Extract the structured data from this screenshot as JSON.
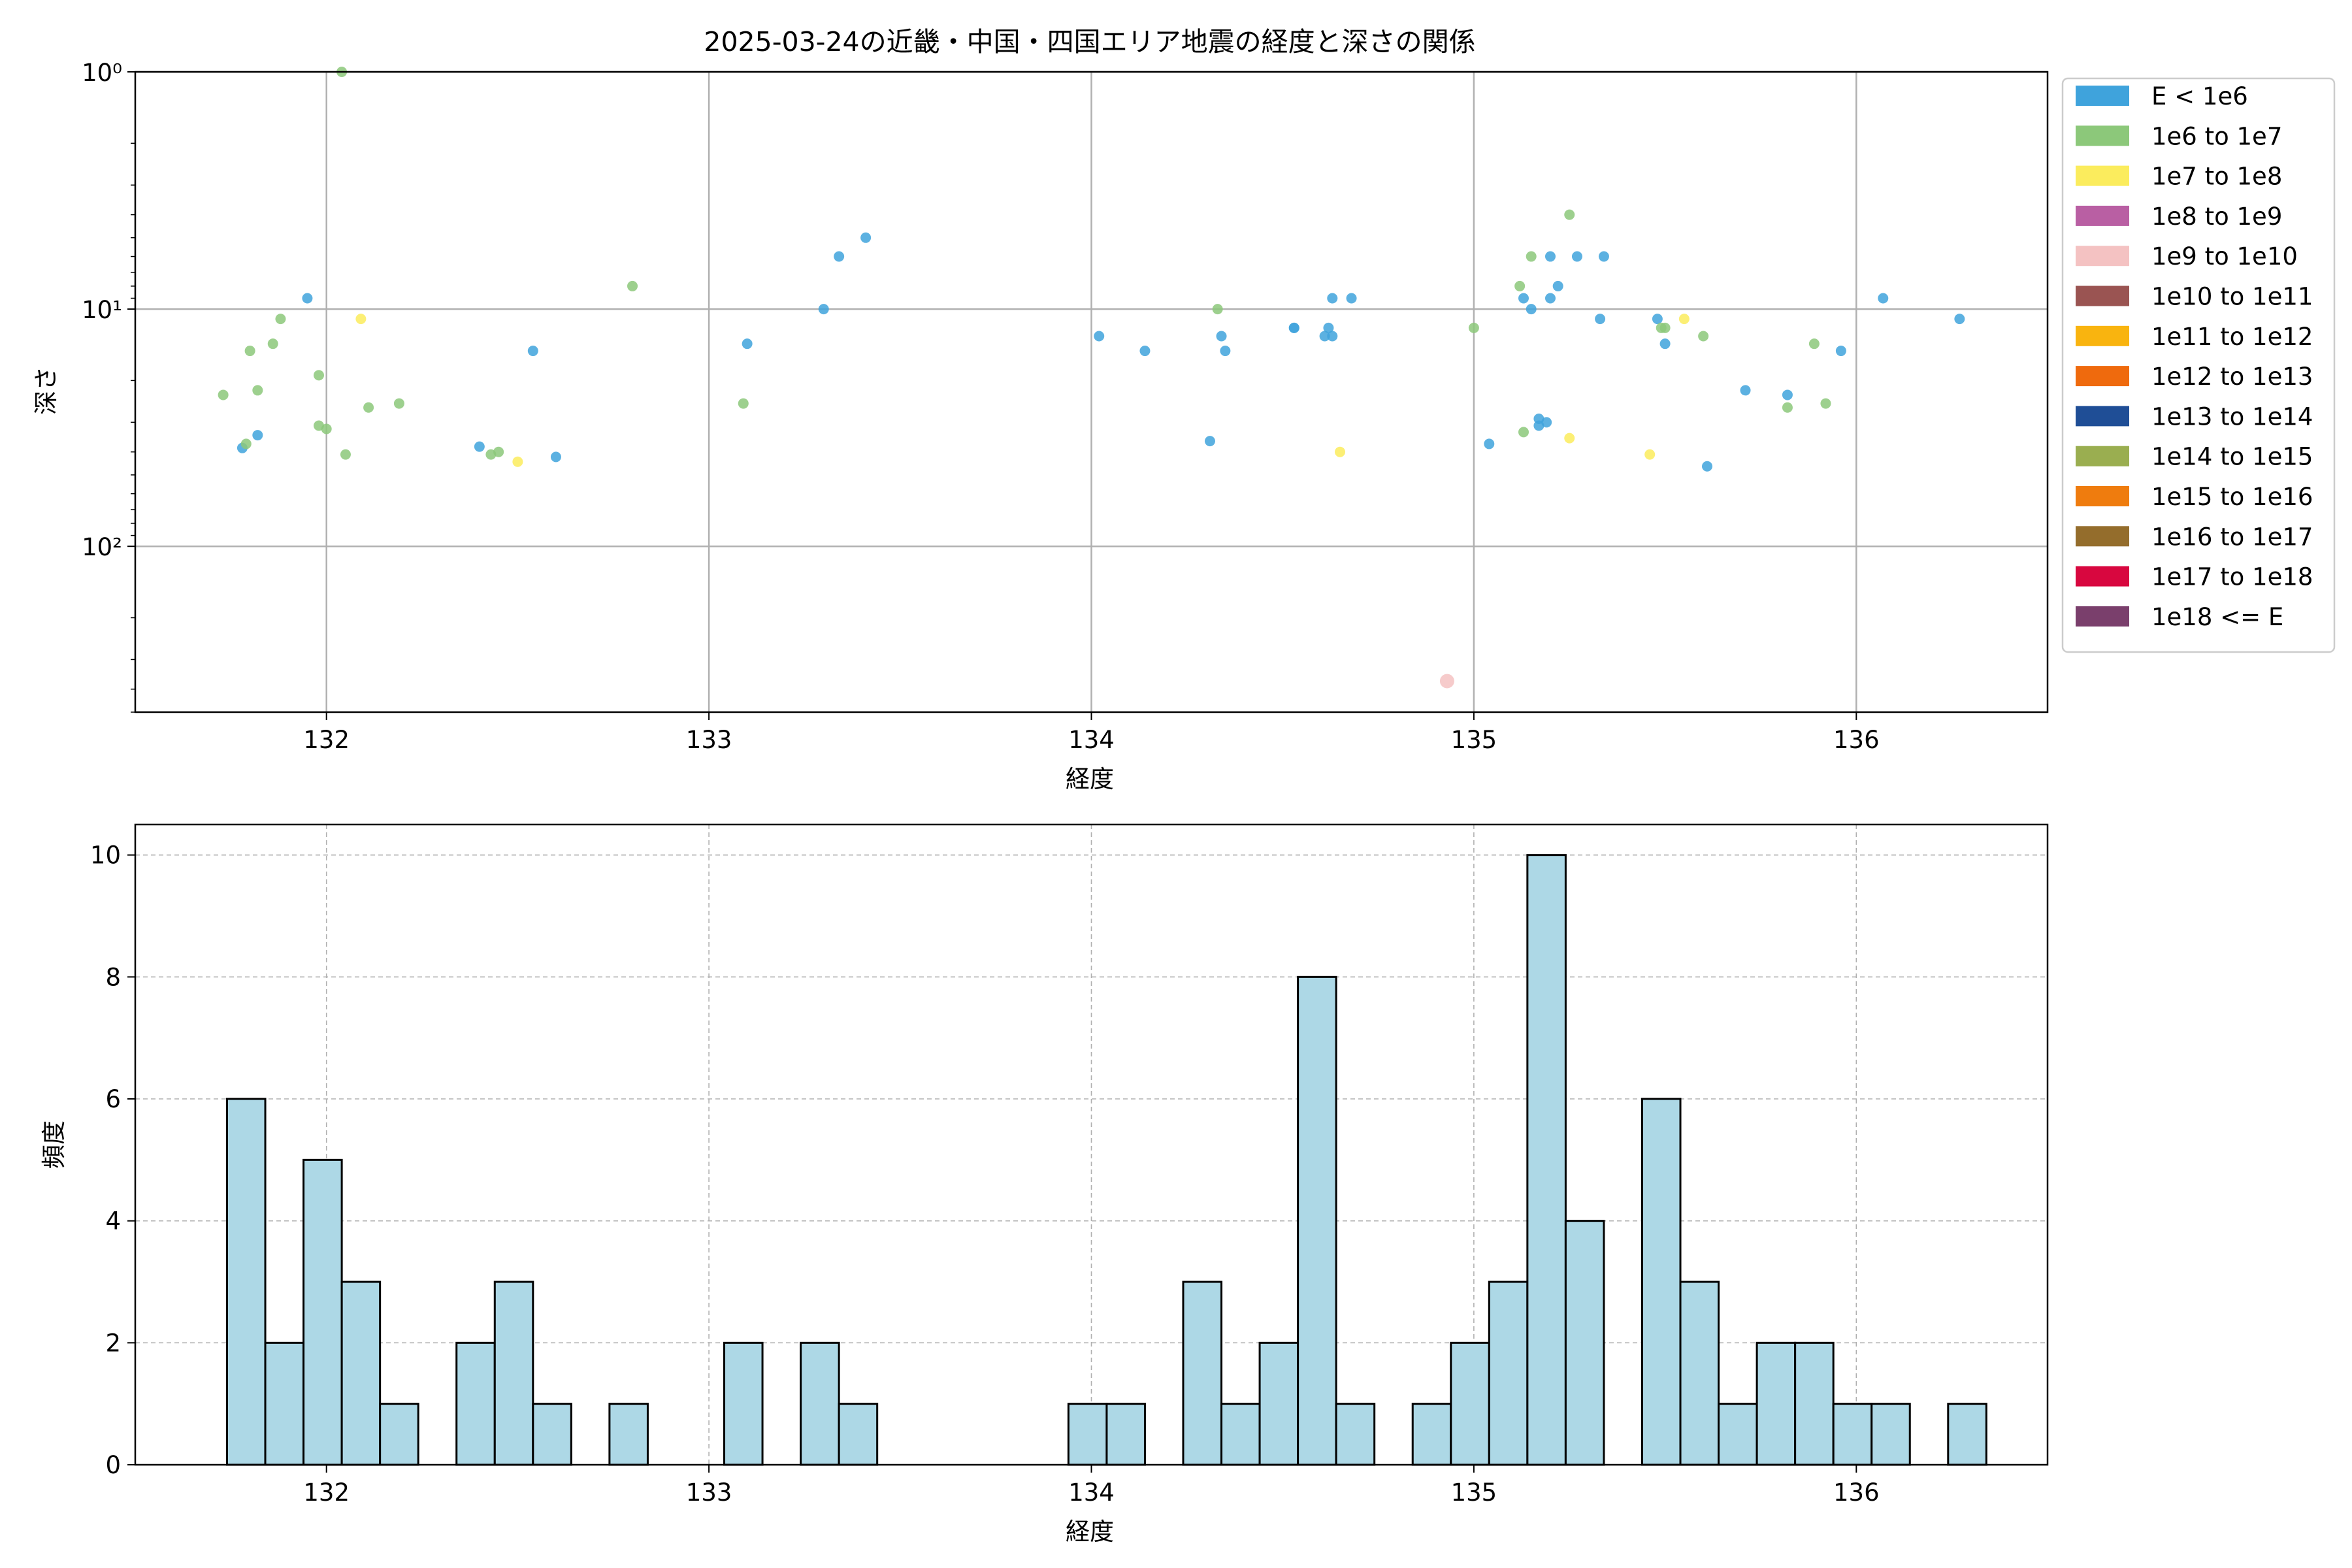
{
  "chart_data": [
    {
      "type": "scatter",
      "title": "2025-03-24の近畿・中国・四国エリア地震の経度と深さの関係",
      "xlabel": "経度",
      "ylabel": "深さ",
      "xlim": [
        131.5,
        136.5
      ],
      "ylim": [
        1,
        500
      ],
      "y_scale": "log",
      "y_axis_inverted": true,
      "x_ticks": [
        132,
        133,
        134,
        135,
        136
      ],
      "x_tick_labels": [
        "132",
        "133",
        "134",
        "135",
        "136"
      ],
      "y_ticks": [
        1,
        10,
        100
      ],
      "y_tick_labels": [
        "10⁰",
        "10¹",
        "10²"
      ],
      "grid": true,
      "legend": {
        "placement": "outside-right-top",
        "entries": [
          {
            "label": "E < 1e6",
            "color": "#3fa3dc"
          },
          {
            "label": "1e6 to 1e7",
            "color": "#8cc87a"
          },
          {
            "label": "1e7 to 1e8",
            "color": "#fbec5d"
          },
          {
            "label": "1e8 to 1e9",
            "color": "#b95fa3"
          },
          {
            "label": "1e9 to 1e10",
            "color": "#f4c2c2"
          },
          {
            "label": "1e10 to 1e11",
            "color": "#9a5452"
          },
          {
            "label": "1e11 to 1e12",
            "color": "#f9b40f"
          },
          {
            "label": "1e12 to 1e13",
            "color": "#ef6a0d"
          },
          {
            "label": "1e13 to 1e14",
            "color": "#1f4e96"
          },
          {
            "label": "1e14 to 1e15",
            "color": "#9aae50"
          },
          {
            "label": "1e15 to 1e16",
            "color": "#ef7c0e"
          },
          {
            "label": "1e16 to 1e17",
            "color": "#946d2c"
          },
          {
            "label": "1e17 to 1e18",
            "color": "#d8073f"
          },
          {
            "label": "1e18 <= E",
            "color": "#7a3f6c"
          }
        ]
      },
      "series": [
        {
          "category": "E < 1e6",
          "color": "#3fa3dc",
          "points": [
            [
              131.78,
              38.5
            ],
            [
              131.82,
              34.0
            ],
            [
              131.95,
              9.0
            ],
            [
              132.4,
              38.0
            ],
            [
              132.54,
              15.0
            ],
            [
              132.6,
              42.0
            ],
            [
              133.1,
              14.0
            ],
            [
              133.3,
              10.0
            ],
            [
              133.34,
              6.0
            ],
            [
              133.41,
              5.0
            ],
            [
              134.02,
              13.0
            ],
            [
              134.14,
              15.0
            ],
            [
              134.31,
              36.0
            ],
            [
              134.34,
              13.0
            ],
            [
              134.35,
              15.0
            ],
            [
              134.53,
              12.0
            ],
            [
              134.53,
              12.0
            ],
            [
              134.61,
              13.0
            ],
            [
              134.62,
              12.0
            ],
            [
              134.63,
              13.0
            ],
            [
              134.63,
              9.0
            ],
            [
              134.68,
              9.0
            ],
            [
              135.04,
              37.0
            ],
            [
              135.13,
              9.0
            ],
            [
              135.15,
              10.0
            ],
            [
              135.17,
              29.0
            ],
            [
              135.17,
              31.0
            ],
            [
              135.19,
              30.0
            ],
            [
              135.2,
              6.0
            ],
            [
              135.2,
              9.0
            ],
            [
              135.22,
              8.0
            ],
            [
              135.27,
              6.0
            ],
            [
              135.33,
              11.0
            ],
            [
              135.34,
              6.0
            ],
            [
              135.48,
              11.0
            ],
            [
              135.5,
              14.0
            ],
            [
              135.61,
              46.0
            ],
            [
              135.71,
              22.0
            ],
            [
              135.82,
              23.0
            ],
            [
              135.96,
              15.0
            ],
            [
              136.07,
              9.0
            ],
            [
              136.27,
              11.0
            ]
          ]
        },
        {
          "category": "1e6 to 1e7",
          "color": "#8cc87a",
          "points": [
            [
              131.73,
              23.0
            ],
            [
              131.79,
              37.0
            ],
            [
              131.8,
              15.0
            ],
            [
              131.82,
              22.0
            ],
            [
              131.86,
              14.0
            ],
            [
              131.88,
              11.0
            ],
            [
              131.98,
              19.0
            ],
            [
              131.98,
              31.0
            ],
            [
              132.0,
              32.0
            ],
            [
              132.04,
              1.0
            ],
            [
              132.05,
              41.0
            ],
            [
              132.11,
              26.0
            ],
            [
              132.19,
              25.0
            ],
            [
              132.43,
              41.0
            ],
            [
              132.45,
              40.0
            ],
            [
              132.8,
              8.0
            ],
            [
              133.09,
              25.0
            ],
            [
              134.33,
              10.0
            ],
            [
              135.0,
              12.0
            ],
            [
              135.12,
              8.0
            ],
            [
              135.13,
              33.0
            ],
            [
              135.15,
              6.0
            ],
            [
              135.25,
              4.0
            ],
            [
              135.49,
              12.0
            ],
            [
              135.5,
              12.0
            ],
            [
              135.6,
              13.0
            ],
            [
              135.82,
              26.0
            ],
            [
              135.89,
              14.0
            ],
            [
              135.92,
              25.0
            ]
          ]
        },
        {
          "category": "1e7 to 1e8",
          "color": "#fbec5d",
          "points": [
            [
              132.09,
              11.0
            ],
            [
              132.5,
              44.0
            ],
            [
              134.65,
              40.0
            ],
            [
              135.25,
              35.0
            ],
            [
              135.46,
              41.0
            ],
            [
              135.55,
              11.0
            ]
          ]
        },
        {
          "category": "1e9 to 1e10",
          "color": "#f4c2c2",
          "points": [
            [
              134.93,
              370.0
            ]
          ]
        }
      ]
    },
    {
      "type": "bar",
      "subtype": "histogram",
      "xlabel": "経度",
      "ylabel": "頻度",
      "xlim": [
        131.5,
        136.5
      ],
      "ylim": [
        0,
        10.5
      ],
      "x_ticks": [
        132,
        133,
        134,
        135,
        136
      ],
      "y_ticks": [
        0,
        2,
        4,
        6,
        8,
        10
      ],
      "grid": true,
      "bar_color": "#add8e6",
      "bin_start": 131.74,
      "bin_width": 0.1,
      "counts": [
        6,
        2,
        5,
        3,
        1,
        0,
        2,
        3,
        1,
        0,
        1,
        0,
        0,
        2,
        0,
        2,
        1,
        0,
        0,
        0,
        0,
        0,
        1,
        1,
        0,
        3,
        1,
        2,
        8,
        1,
        0,
        1,
        2,
        3,
        10,
        4,
        0,
        6,
        3,
        1,
        2,
        2,
        1,
        1,
        0,
        1
      ]
    }
  ]
}
